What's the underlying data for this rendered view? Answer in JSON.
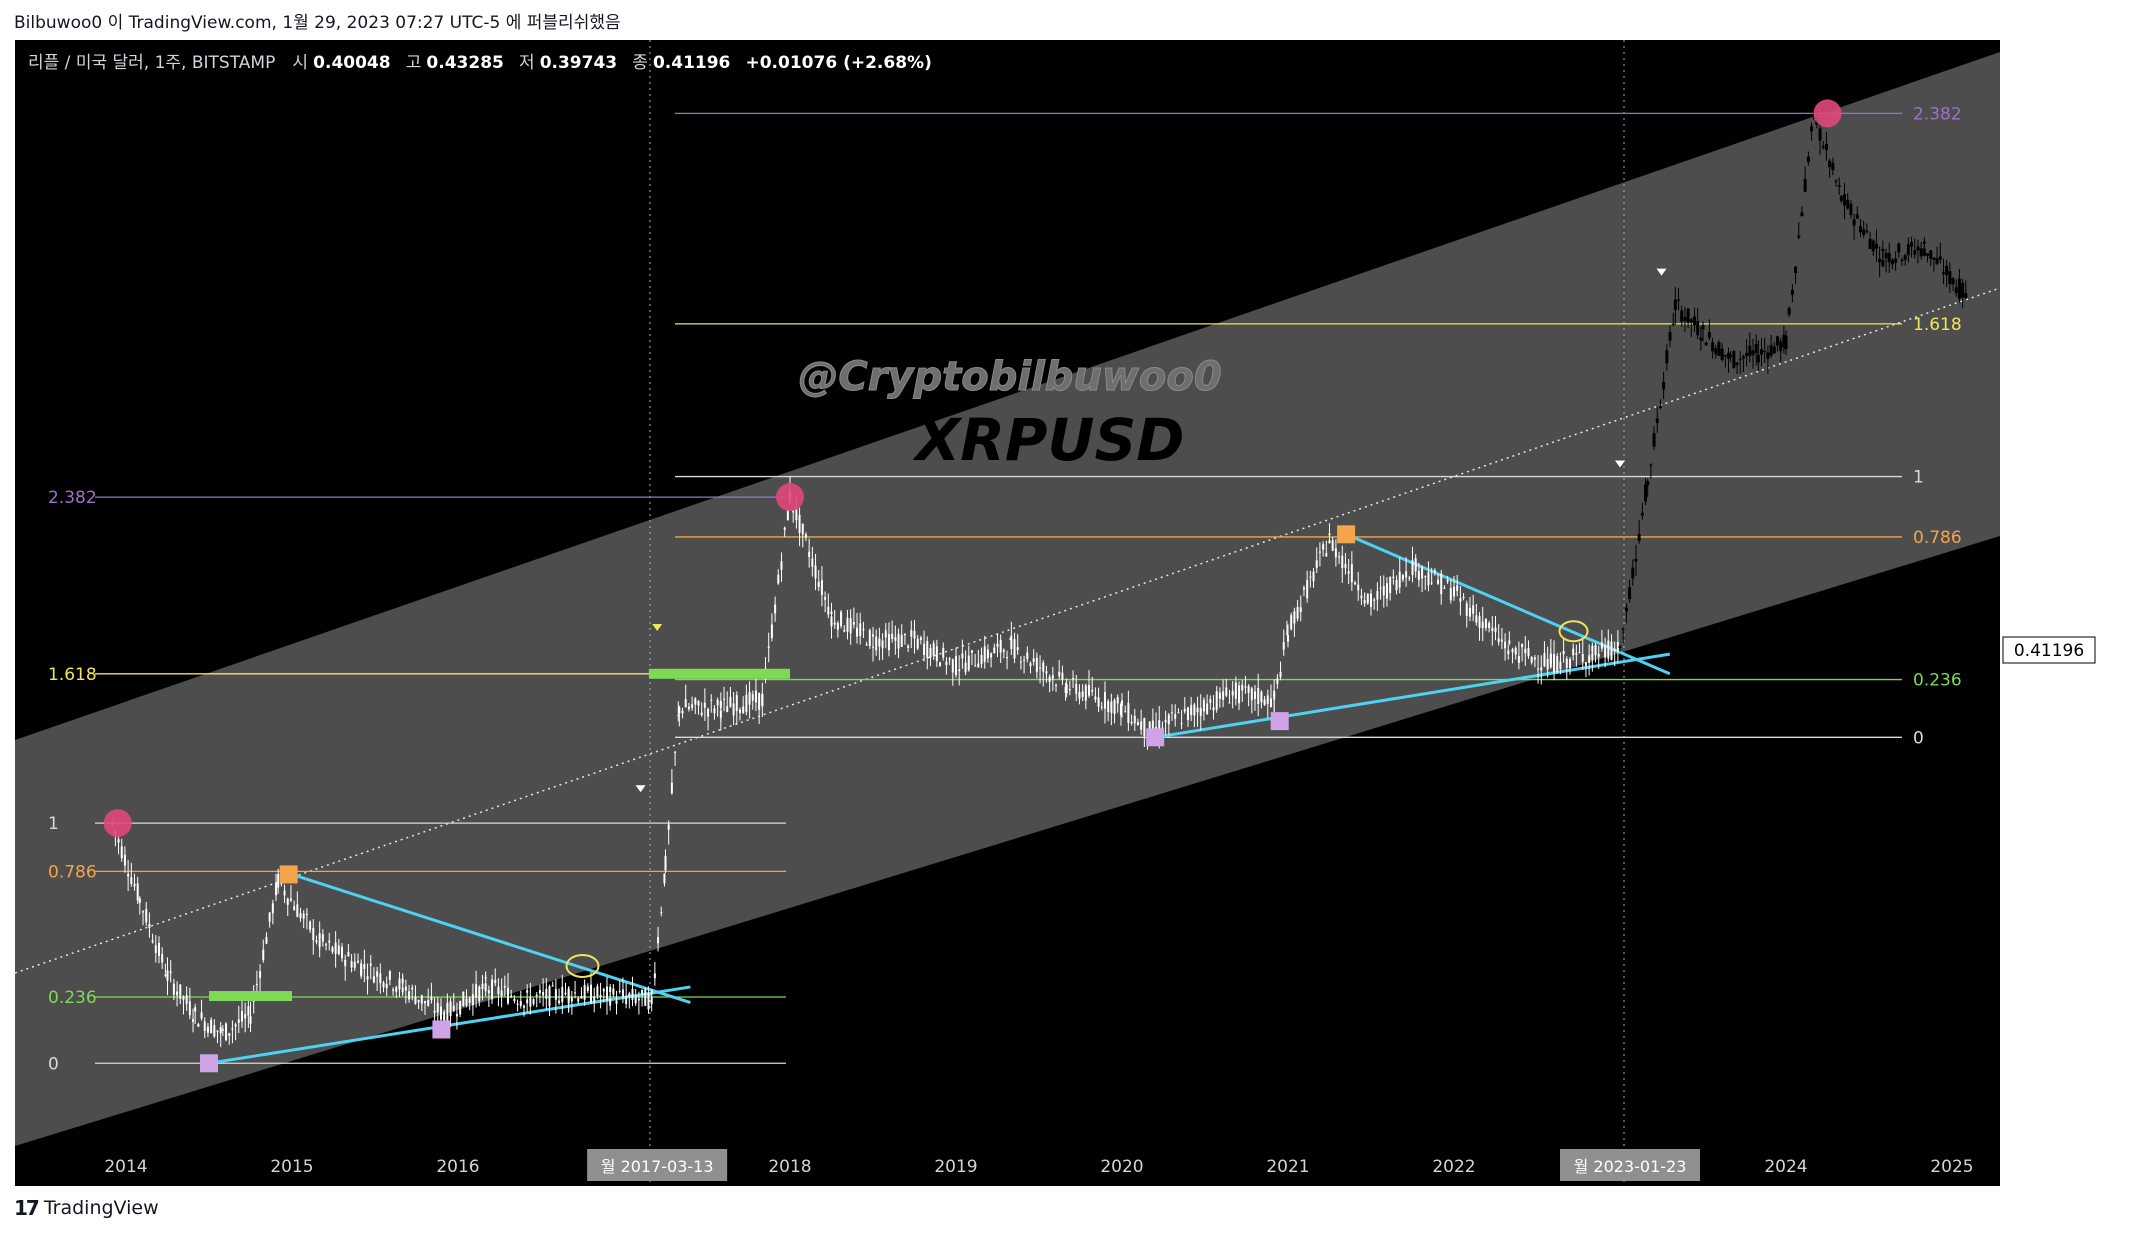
{
  "header": {
    "text": "Bilbuwoo0 이 TradingView.com, 1월 29, 2023 07:27 UTC-5 에 퍼블리쉬했음"
  },
  "footer": {
    "logo": "17",
    "brand": "TradingView"
  },
  "legend": {
    "symbol": "리플 / 미국 달러, 1주, BITSTAMP",
    "open_label": "시",
    "open": "0.40048",
    "high_label": "고",
    "high": "0.43285",
    "low_label": "저",
    "low": "0.39743",
    "close_label": "종",
    "close": "0.41196",
    "change": "+0.01076 (+2.68%)"
  },
  "watermark": {
    "handle": "@Cryptobilbuwoo0",
    "title": "XRPUSD"
  },
  "last_price": "0.41196",
  "colors": {
    "background": "#000000",
    "channel": "#4d4d4d",
    "trendline": "#4dd2f2",
    "fib_2382": "#9c72c7",
    "fib_1618": "#f2e55c",
    "fib_1": "#d9d9d9",
    "fib_0786": "#f2a54a",
    "fib_0236": "#7ed957",
    "fib_0": "#d9d9d9",
    "peak_marker": "#e0487a",
    "high_marker": "#f2a54a",
    "low_marker": "#cfa3e6",
    "candles_history": "#ffffff",
    "candles_projection": "#000000"
  },
  "chart_data": {
    "type": "line",
    "scale": "log",
    "title": "XRPUSD",
    "x_ticks": [
      "2014",
      "2015",
      "2016",
      "2017",
      "2018",
      "2019",
      "2020",
      "2021",
      "2022",
      "2023",
      "2024",
      "2025"
    ],
    "y_ticks": [
      "575.00000",
      "325.00000",
      "185.00000",
      "105.00000",
      "60.00000",
      "32.50000",
      "18.50000",
      "10.50000",
      "6.00000",
      "3.00000",
      "1.60000",
      "0.90000",
      "0.50000",
      "0.25000",
      "0.13000",
      "0.07000",
      "0.04000",
      "0.02200",
      "0.01200",
      "0.00650",
      "0.00350",
      "0.00190",
      "0.00105"
    ],
    "ylim": [
      0.00105,
      575
    ],
    "vertical_markers": [
      {
        "label": "월 2017-03-13",
        "x": "2017-03-13"
      },
      {
        "label": "월 2023-01-23",
        "x": "2023-01-23"
      }
    ],
    "fib_sets": [
      {
        "name": "cycle-1",
        "levels": [
          {
            "label": "2.382",
            "price": 2.5
          },
          {
            "label": "1.618",
            "price": 0.3
          },
          {
            "label": "1",
            "price": 0.05
          },
          {
            "label": "0.786",
            "price": 0.028
          },
          {
            "label": "0.236",
            "price": 0.0062
          },
          {
            "label": "0",
            "price": 0.0028
          }
        ]
      },
      {
        "name": "cycle-2",
        "levels": [
          {
            "label": "2.382",
            "price": 250
          },
          {
            "label": "1.618",
            "price": 20
          },
          {
            "label": "1",
            "price": 3.2
          },
          {
            "label": "0.786",
            "price": 1.55
          },
          {
            "label": "0.236",
            "price": 0.28
          },
          {
            "label": "0",
            "price": 0.14
          }
        ]
      }
    ],
    "series": [
      {
        "name": "history",
        "x": [
          "2013-12",
          "2014-02",
          "2014-04",
          "2014-06",
          "2014-08",
          "2014-10",
          "2014-12",
          "2015-03",
          "2015-06",
          "2015-09",
          "2015-12",
          "2016-03",
          "2016-06",
          "2016-09",
          "2016-12",
          "2017-03",
          "2017-04",
          "2017-05",
          "2017-08",
          "2017-11",
          "2018-01",
          "2018-04",
          "2018-07",
          "2018-10",
          "2019-01",
          "2019-05",
          "2019-09",
          "2020-01",
          "2020-03",
          "2020-06",
          "2020-09",
          "2020-12",
          "2021-01",
          "2021-04",
          "2021-07",
          "2021-10",
          "2022-01",
          "2022-05",
          "2022-08",
          "2022-11",
          "2023-01"
        ],
        "y": [
          0.05,
          0.02,
          0.008,
          0.005,
          0.004,
          0.005,
          0.025,
          0.012,
          0.009,
          0.007,
          0.005,
          0.007,
          0.006,
          0.0065,
          0.0063,
          0.006,
          0.03,
          0.2,
          0.2,
          0.22,
          2.5,
          0.6,
          0.45,
          0.45,
          0.33,
          0.42,
          0.26,
          0.2,
          0.15,
          0.19,
          0.24,
          0.22,
          0.5,
          1.5,
          0.7,
          1.1,
          0.8,
          0.4,
          0.34,
          0.38,
          0.41
        ]
      },
      {
        "name": "projection",
        "x": [
          "2023-01",
          "2023-03",
          "2023-05",
          "2023-07",
          "2023-09",
          "2023-11",
          "2024-01",
          "2024-03",
          "2024-05",
          "2024-08",
          "2024-11",
          "2025-02"
        ],
        "y": [
          0.41,
          3.0,
          25,
          18,
          13,
          14,
          16,
          250,
          90,
          45,
          50,
          28
        ]
      }
    ]
  }
}
